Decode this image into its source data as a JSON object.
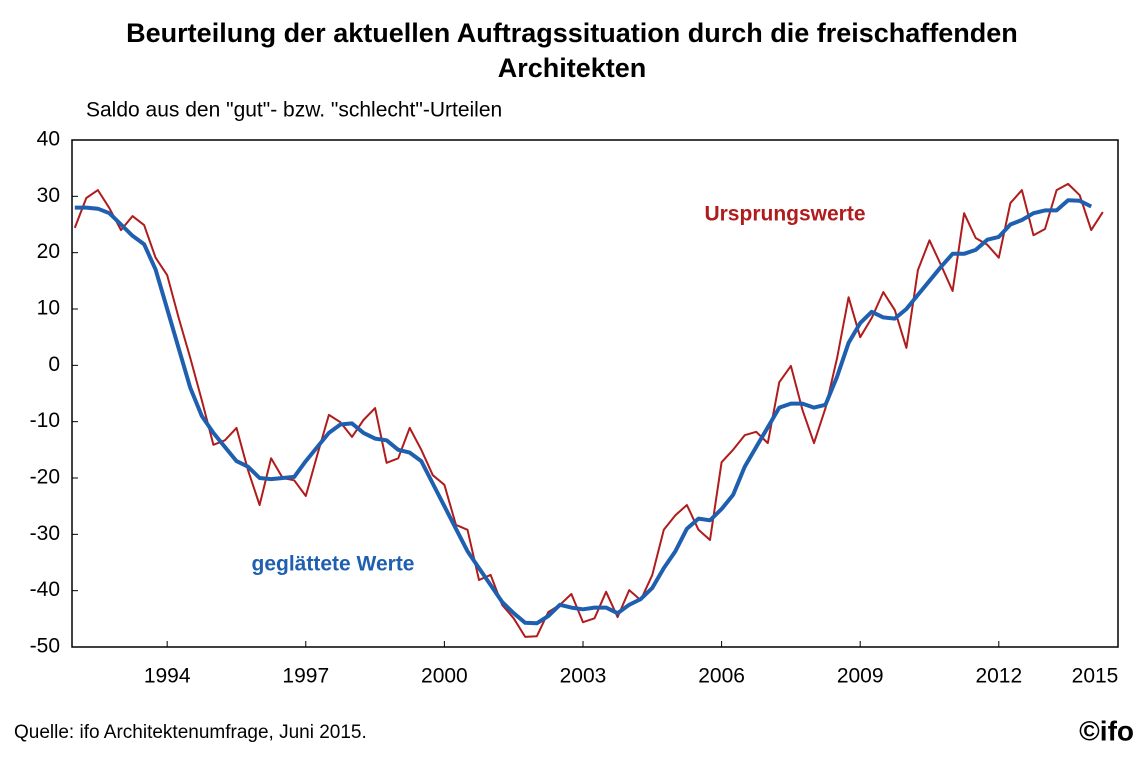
{
  "chart_data": {
    "type": "line",
    "title": [
      "Beurteilung der aktuellen Auftragssituation durch die freischaffenden",
      "Architekten"
    ],
    "subtitle": "Saldo aus den \"gut\"- bzw. \"schlecht\"-Urteilen",
    "source": "Quelle: ifo Architektenumfrage, Juni 2015.",
    "logo": "©ifo",
    "x": [
      1992,
      1992.25,
      1992.5,
      1992.75,
      1993,
      1993.25,
      1993.5,
      1993.75,
      1994,
      1994.25,
      1994.5,
      1994.75,
      1995,
      1995.25,
      1995.5,
      1995.75,
      1996,
      1996.25,
      1996.5,
      1996.75,
      1997,
      1997.25,
      1997.5,
      1997.75,
      1998,
      1998.25,
      1998.5,
      1998.75,
      1999,
      1999.25,
      1999.5,
      1999.75,
      2000,
      2000.25,
      2000.5,
      2000.75,
      2001,
      2001.25,
      2001.5,
      2001.75,
      2002,
      2002.25,
      2002.5,
      2002.75,
      2003,
      2003.25,
      2003.5,
      2003.75,
      2004,
      2004.25,
      2004.5,
      2004.75,
      2005,
      2005.25,
      2005.5,
      2005.75,
      2006,
      2006.25,
      2006.5,
      2006.75,
      2007,
      2007.25,
      2007.5,
      2007.75,
      2008,
      2008.25,
      2008.5,
      2008.75,
      2009,
      2009.25,
      2009.5,
      2009.75,
      2010,
      2010.25,
      2010.5,
      2010.75,
      2011,
      2011.25,
      2011.5,
      2011.75,
      2012,
      2012.25,
      2012.5,
      2012.75,
      2013,
      2013.25,
      2013.5,
      2013.75,
      2014,
      2014.25
    ],
    "series": [
      {
        "name": "Ursprungswerte",
        "color": "#b01c1c",
        "width": 2,
        "values": [
          24.4,
          29.7,
          31.1,
          27.9,
          24.0,
          26.5,
          24.9,
          19.1,
          16.0,
          8.4,
          1.3,
          -6.2,
          -14.1,
          -13.3,
          -11.1,
          -18.6,
          -24.8,
          -16.5,
          -20.0,
          -20.4,
          -23.2,
          -15.9,
          -8.8,
          -10.1,
          -12.7,
          -9.7,
          -7.6,
          -17.3,
          -16.5,
          -11.1,
          -15.0,
          -19.5,
          -21.2,
          -28.3,
          -29.2,
          -38.1,
          -37.2,
          -42.5,
          -44.9,
          -48.2,
          -48.1,
          -43.8,
          -42.5,
          -40.6,
          -45.6,
          -44.9,
          -40.2,
          -44.7,
          -39.9,
          -41.7,
          -37.2,
          -29.2,
          -26.6,
          -24.8,
          -29.2,
          -31.0,
          -17.2,
          -15.0,
          -12.4,
          -11.8,
          -13.8,
          -3.0,
          -0.1,
          -7.9,
          -13.8,
          -7.6,
          1.3,
          12.1,
          5.0,
          8.4,
          13.0,
          9.8,
          3.1,
          16.9,
          22.2,
          17.8,
          13.2,
          27.0,
          22.6,
          21.4,
          19.1,
          28.8,
          31.1,
          23.1,
          24.2,
          31.1,
          32.2,
          30.2,
          24.0,
          27.2
        ]
      },
      {
        "name": "geglättete Werte",
        "color": "#1f5fb0",
        "width": 4,
        "values": [
          28,
          28,
          27.8,
          27,
          25,
          23,
          21.5,
          17,
          10,
          3,
          -4,
          -9,
          -12,
          -14.5,
          -17,
          -18,
          -20,
          -20.2,
          -20,
          -19.8,
          -17,
          -14.5,
          -12,
          -10.5,
          -10.3,
          -12,
          -13,
          -13.3,
          -15,
          -15.5,
          -17,
          -21,
          -25,
          -29,
          -33,
          -36,
          -39,
          -42,
          -44,
          -45.7,
          -45.8,
          -44.5,
          -42.5,
          -43,
          -43.3,
          -43,
          -43,
          -44,
          -42.5,
          -41.5,
          -39.5,
          -36,
          -33,
          -29,
          -27.2,
          -27.5,
          -25.5,
          -23,
          -18,
          -14.5,
          -11,
          -7.5,
          -6.8,
          -6.8,
          -7.5,
          -7,
          -2,
          4,
          7.5,
          9.5,
          8.5,
          8.3,
          10,
          12.5,
          15,
          17.5,
          19.8,
          19.8,
          20.5,
          22.3,
          22.8,
          25,
          25.8,
          27,
          27.5,
          27.5,
          29.3,
          29.2,
          28.2,
          null
        ]
      }
    ],
    "xlim": [
      1991.94,
      2014.58
    ],
    "xticks": [
      1994,
      1997,
      2000,
      2003,
      2006,
      2009,
      2012,
      2015
    ],
    "ylim": [
      -50,
      40
    ],
    "yticks": [
      -50,
      -40,
      -30,
      -20,
      -10,
      0,
      10,
      20,
      30,
      40
    ],
    "grid": false
  }
}
